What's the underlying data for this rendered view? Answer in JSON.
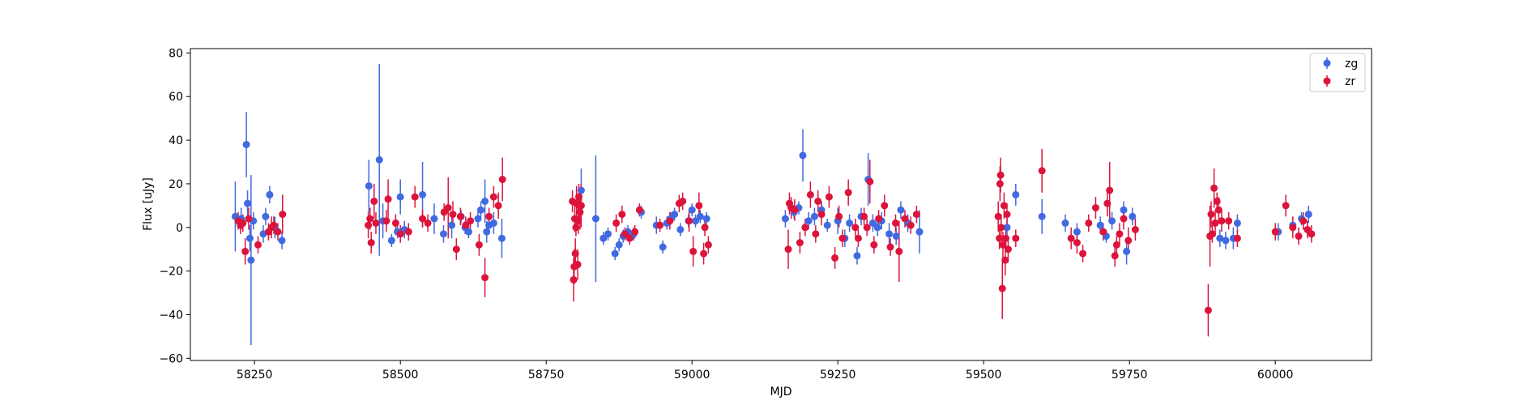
{
  "chart_data": {
    "type": "scatter",
    "title": "",
    "xlabel": "MJD",
    "ylabel": "Flux [uJy]",
    "xlim": [
      58140,
      60165
    ],
    "ylim": [
      -61,
      82
    ],
    "xticks": [
      58250,
      58500,
      58750,
      59000,
      59250,
      59500,
      59750,
      60000
    ],
    "yticks": [
      -60,
      -40,
      -20,
      0,
      20,
      40,
      60,
      80
    ],
    "grid": false,
    "legend_position": "top-right",
    "series": [
      {
        "name": "zg",
        "color": "#4169e1",
        "points": [
          [
            58217,
            5,
            16
          ],
          [
            58227,
            4,
            5
          ],
          [
            58236,
            38,
            15
          ],
          [
            58238,
            11,
            6
          ],
          [
            58242,
            -5,
            6
          ],
          [
            58244,
            -15,
            39
          ],
          [
            58248,
            3,
            4
          ],
          [
            58265,
            -3,
            4
          ],
          [
            58269,
            5,
            4
          ],
          [
            58276,
            15,
            4
          ],
          [
            58285,
            0,
            5
          ],
          [
            58297,
            -6,
            4
          ],
          [
            58446,
            19,
            12
          ],
          [
            58464,
            31,
            44
          ],
          [
            58470,
            3,
            8
          ],
          [
            58485,
            -6,
            3
          ],
          [
            58495,
            -2,
            3
          ],
          [
            58500,
            14,
            8
          ],
          [
            58507,
            -1,
            4
          ],
          [
            58538,
            15,
            15
          ],
          [
            58558,
            4,
            7
          ],
          [
            58574,
            -3,
            4
          ],
          [
            58588,
            1,
            6
          ],
          [
            58604,
            5,
            3
          ],
          [
            58611,
            0,
            3
          ],
          [
            58617,
            -2,
            3
          ],
          [
            58633,
            4,
            4
          ],
          [
            58638,
            8,
            4
          ],
          [
            58645,
            12,
            10
          ],
          [
            58652,
            1,
            4
          ],
          [
            58648,
            -2,
            5
          ],
          [
            58660,
            2,
            5
          ],
          [
            58674,
            -5,
            9
          ],
          [
            58810,
            17,
            10
          ],
          [
            58835,
            4,
            29
          ],
          [
            58848,
            -5,
            3
          ],
          [
            58856,
            -3,
            3
          ],
          [
            58868,
            -12,
            3
          ],
          [
            58875,
            -8,
            3
          ],
          [
            58882,
            -4,
            3
          ],
          [
            58890,
            -2,
            3
          ],
          [
            58900,
            -3,
            3
          ],
          [
            58913,
            7,
            3
          ],
          [
            58939,
            1,
            4
          ],
          [
            58950,
            -9,
            3
          ],
          [
            58957,
            2,
            3
          ],
          [
            58963,
            4,
            3
          ],
          [
            58970,
            6,
            3
          ],
          [
            58980,
            -1,
            3
          ],
          [
            58994,
            3,
            3
          ],
          [
            59000,
            8,
            3
          ],
          [
            59006,
            3,
            3
          ],
          [
            59014,
            5,
            3
          ],
          [
            59025,
            4,
            3
          ],
          [
            59160,
            4,
            4
          ],
          [
            59175,
            7,
            3
          ],
          [
            59183,
            9,
            3
          ],
          [
            59190,
            33,
            12
          ],
          [
            59200,
            3,
            4
          ],
          [
            59210,
            5,
            4
          ],
          [
            59222,
            8,
            4
          ],
          [
            59232,
            1,
            3
          ],
          [
            59250,
            3,
            6
          ],
          [
            59262,
            -5,
            4
          ],
          [
            59270,
            2,
            4
          ],
          [
            59283,
            -13,
            4
          ],
          [
            59290,
            5,
            4
          ],
          [
            59302,
            22,
            12
          ],
          [
            59310,
            2,
            4
          ],
          [
            59318,
            0,
            4
          ],
          [
            59325,
            3,
            4
          ],
          [
            59338,
            -3,
            5
          ],
          [
            59350,
            -4,
            4
          ],
          [
            59358,
            8,
            4
          ],
          [
            59370,
            2,
            4
          ],
          [
            59390,
            -2,
            10
          ],
          [
            59540,
            0,
            4
          ],
          [
            59555,
            15,
            5
          ],
          [
            59600,
            5,
            8
          ],
          [
            59640,
            2,
            4
          ],
          [
            59660,
            -2,
            4
          ],
          [
            59700,
            1,
            4
          ],
          [
            59710,
            -4,
            3
          ],
          [
            59720,
            3,
            4
          ],
          [
            59740,
            8,
            4
          ],
          [
            59745,
            -11,
            6
          ],
          [
            59755,
            5,
            4
          ],
          [
            59905,
            -5,
            4
          ],
          [
            59915,
            -6,
            4
          ],
          [
            59928,
            -5,
            5
          ],
          [
            59935,
            2,
            4
          ],
          [
            60005,
            -2,
            4
          ],
          [
            60030,
            1,
            4
          ],
          [
            60045,
            4,
            3
          ],
          [
            60057,
            6,
            4
          ]
        ]
      },
      {
        "name": "zr",
        "color": "#dc143c",
        "points": [
          [
            58222,
            3,
            4
          ],
          [
            58226,
            1,
            4
          ],
          [
            58230,
            2,
            4
          ],
          [
            58234,
            -11,
            6
          ],
          [
            58240,
            4,
            5
          ],
          [
            58256,
            -8,
            4
          ],
          [
            58274,
            -2,
            4
          ],
          [
            58279,
            0,
            5
          ],
          [
            58283,
            1,
            4
          ],
          [
            58290,
            -2,
            4
          ],
          [
            58298,
            6,
            9
          ],
          [
            58445,
            1,
            6
          ],
          [
            58448,
            4,
            5
          ],
          [
            58450,
            -7,
            5
          ],
          [
            58455,
            12,
            8
          ],
          [
            58458,
            2,
            5
          ],
          [
            58476,
            3,
            5
          ],
          [
            58479,
            13,
            9
          ],
          [
            58492,
            2,
            4
          ],
          [
            58500,
            -3,
            4
          ],
          [
            58514,
            -2,
            4
          ],
          [
            58525,
            14,
            5
          ],
          [
            58538,
            4,
            4
          ],
          [
            58547,
            2,
            4
          ],
          [
            58575,
            7,
            4
          ],
          [
            58582,
            9,
            14
          ],
          [
            58590,
            6,
            6
          ],
          [
            58596,
            -10,
            5
          ],
          [
            58603,
            5,
            4
          ],
          [
            58612,
            1,
            4
          ],
          [
            58620,
            3,
            4
          ],
          [
            58635,
            -8,
            5
          ],
          [
            58645,
            -23,
            9
          ],
          [
            58652,
            5,
            4
          ],
          [
            58660,
            14,
            5
          ],
          [
            58668,
            10,
            6
          ],
          [
            58675,
            22,
            10
          ],
          [
            58795,
            12,
            5
          ],
          [
            58797,
            -24,
            10
          ],
          [
            58798,
            -18,
            8
          ],
          [
            58799,
            4,
            6
          ],
          [
            58800,
            -12,
            7
          ],
          [
            58801,
            0,
            4
          ],
          [
            58802,
            11,
            8
          ],
          [
            58804,
            -17,
            7
          ],
          [
            58805,
            3,
            6
          ],
          [
            58806,
            14,
            6
          ],
          [
            58807,
            10,
            8
          ],
          [
            58808,
            7,
            8
          ],
          [
            58810,
            10,
            10
          ],
          [
            58870,
            2,
            4
          ],
          [
            58880,
            6,
            4
          ],
          [
            58885,
            -3,
            3
          ],
          [
            58893,
            -5,
            3
          ],
          [
            58902,
            -2,
            3
          ],
          [
            58910,
            8,
            3
          ],
          [
            58945,
            1,
            3
          ],
          [
            58962,
            3,
            4
          ],
          [
            58978,
            11,
            4
          ],
          [
            58984,
            12,
            4
          ],
          [
            58995,
            3,
            5
          ],
          [
            59002,
            -11,
            7
          ],
          [
            59012,
            10,
            6
          ],
          [
            59020,
            -12,
            5
          ],
          [
            59022,
            0,
            4
          ],
          [
            59028,
            -8,
            4
          ],
          [
            59165,
            -10,
            9
          ],
          [
            59167,
            11,
            5
          ],
          [
            59170,
            9,
            5
          ],
          [
            59176,
            8,
            5
          ],
          [
            59185,
            -7,
            5
          ],
          [
            59194,
            0,
            4
          ],
          [
            59203,
            15,
            6
          ],
          [
            59212,
            -3,
            4
          ],
          [
            59216,
            12,
            5
          ],
          [
            59222,
            6,
            5
          ],
          [
            59235,
            14,
            5
          ],
          [
            59245,
            -14,
            5
          ],
          [
            59252,
            5,
            5
          ],
          [
            59258,
            -5,
            4
          ],
          [
            59268,
            16,
            6
          ],
          [
            59280,
            0,
            4
          ],
          [
            59285,
            -5,
            4
          ],
          [
            59295,
            5,
            4
          ],
          [
            59300,
            0,
            4
          ],
          [
            59305,
            21,
            10
          ],
          [
            59312,
            -8,
            4
          ],
          [
            59320,
            4,
            4
          ],
          [
            59330,
            10,
            5
          ],
          [
            59340,
            -9,
            4
          ],
          [
            59349,
            2,
            4
          ],
          [
            59355,
            -11,
            14
          ],
          [
            59365,
            4,
            4
          ],
          [
            59375,
            1,
            4
          ],
          [
            59385,
            6,
            4
          ],
          [
            59525,
            5,
            7
          ],
          [
            59527,
            -5,
            5
          ],
          [
            59528,
            20,
            8
          ],
          [
            59529,
            24,
            8
          ],
          [
            59530,
            0,
            6
          ],
          [
            59532,
            -28,
            14
          ],
          [
            59533,
            -8,
            6
          ],
          [
            59535,
            10,
            6
          ],
          [
            59537,
            -15,
            7
          ],
          [
            59538,
            -5,
            5
          ],
          [
            59540,
            6,
            5
          ],
          [
            59542,
            -10,
            6
          ],
          [
            59555,
            -5,
            4
          ],
          [
            59600,
            26,
            10
          ],
          [
            59650,
            -5,
            5
          ],
          [
            59660,
            -7,
            5
          ],
          [
            59670,
            -12,
            4
          ],
          [
            59680,
            2,
            4
          ],
          [
            59692,
            9,
            5
          ],
          [
            59705,
            -2,
            4
          ],
          [
            59712,
            11,
            6
          ],
          [
            59716,
            17,
            13
          ],
          [
            59725,
            -13,
            5
          ],
          [
            59728,
            -8,
            4
          ],
          [
            59733,
            -3,
            5
          ],
          [
            59740,
            4,
            5
          ],
          [
            59748,
            -6,
            6
          ],
          [
            59760,
            -1,
            5
          ],
          [
            59885,
            -38,
            12
          ],
          [
            59888,
            -4,
            14
          ],
          [
            59890,
            6,
            6
          ],
          [
            59892,
            -3,
            4
          ],
          [
            59895,
            18,
            9
          ],
          [
            59897,
            2,
            6
          ],
          [
            59900,
            12,
            4
          ],
          [
            59903,
            8,
            6
          ],
          [
            59908,
            3,
            5
          ],
          [
            59920,
            3,
            4
          ],
          [
            59935,
            -5,
            4
          ],
          [
            60000,
            -2,
            4
          ],
          [
            60018,
            10,
            5
          ],
          [
            60030,
            0,
            5
          ],
          [
            60040,
            -4,
            4
          ],
          [
            60048,
            3,
            4
          ],
          [
            60055,
            -1,
            4
          ],
          [
            60062,
            -3,
            4
          ]
        ]
      }
    ]
  }
}
